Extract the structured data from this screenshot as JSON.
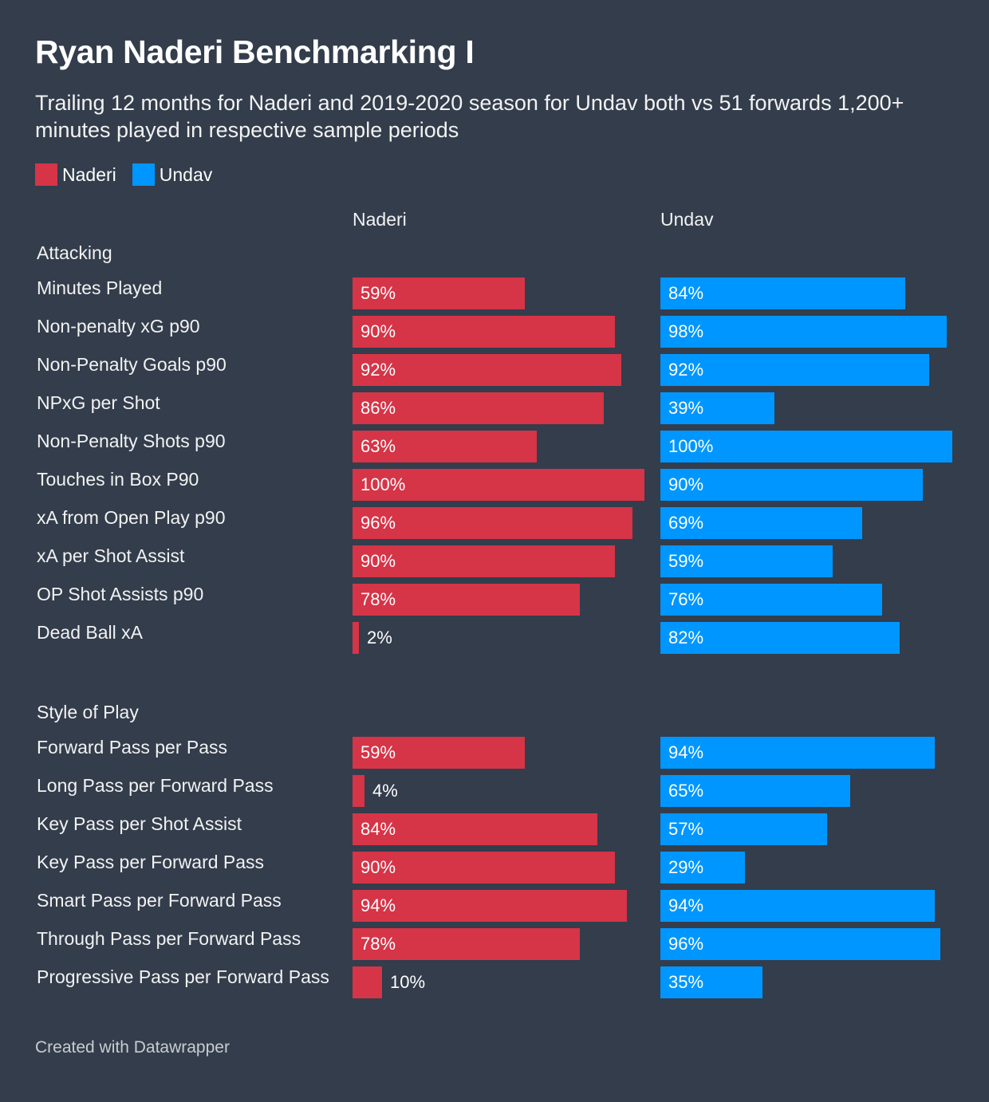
{
  "title": "Ryan Naderi Benchmarking I",
  "subtitle": "Trailing 12 months for Naderi and 2019-2020 season for Undav both vs 51 forwards 1,200+ minutes played in respective sample periods",
  "footer": "Created with Datawrapper",
  "colors": {
    "naderi": "#d63447",
    "undav": "#0096ff"
  },
  "chart_data": {
    "type": "bar",
    "orientation": "horizontal",
    "unit": "%",
    "xlim": [
      0,
      100
    ],
    "legend": [
      "Naderi",
      "Undav"
    ],
    "column_headers": [
      "Naderi",
      "Undav"
    ],
    "groups": [
      {
        "name": "Attacking",
        "categories": [
          "Minutes Played",
          "Non-penalty xG p90",
          "Non-Penalty Goals p90",
          "NPxG per Shot",
          "Non-Penalty Shots p90",
          "Touches in Box P90",
          "xA from Open Play p90",
          "xA per Shot Assist",
          "OP Shot Assists p90",
          "Dead Ball xA"
        ],
        "series": [
          {
            "name": "Naderi",
            "values": [
              59,
              90,
              92,
              86,
              63,
              100,
              96,
              90,
              78,
              2
            ]
          },
          {
            "name": "Undav",
            "values": [
              84,
              98,
              92,
              39,
              100,
              90,
              69,
              59,
              76,
              82
            ]
          }
        ]
      },
      {
        "name": "Style of Play",
        "categories": [
          "Forward Pass per Pass",
          "Long Pass per Forward Pass",
          "Key Pass per Shot Assist",
          "Key Pass per Forward Pass",
          "Smart Pass per Forward Pass",
          "Through Pass per Forward Pass",
          "Progressive Pass per Forward Pass"
        ],
        "series": [
          {
            "name": "Naderi",
            "values": [
              59,
              4,
              84,
              90,
              94,
              78,
              10
            ]
          },
          {
            "name": "Undav",
            "values": [
              94,
              65,
              57,
              29,
              94,
              96,
              35
            ]
          }
        ]
      }
    ]
  }
}
